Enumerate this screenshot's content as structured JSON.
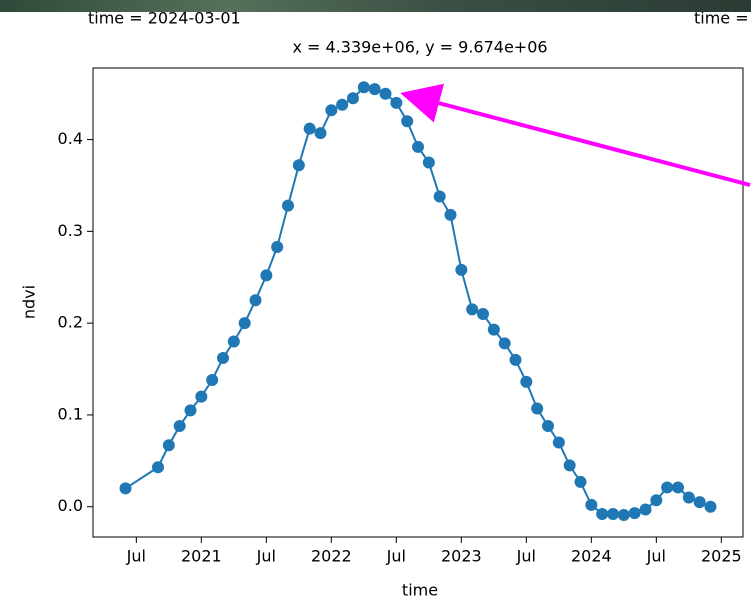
{
  "header": {
    "left_caption": "time = 2024-03-01",
    "right_caption": "time ="
  },
  "chart_data": {
    "type": "line",
    "title": "x = 4.339e+06, y = 9.674e+06",
    "x_label": "time",
    "y_label": "ndvi",
    "color": "#1f77b4",
    "markers": true,
    "x": [
      "2020-06",
      "2020-09",
      "2020-10",
      "2020-11",
      "2020-12",
      "2021-01",
      "2021-02",
      "2021-03",
      "2021-04",
      "2021-05",
      "2021-06",
      "2021-07",
      "2021-08",
      "2021-09",
      "2021-10",
      "2021-11",
      "2021-12",
      "2022-01",
      "2022-02",
      "2022-03",
      "2022-04",
      "2022-05",
      "2022-06",
      "2022-07",
      "2022-08",
      "2022-09",
      "2022-10",
      "2022-11",
      "2022-12",
      "2023-01",
      "2023-02",
      "2023-03",
      "2023-04",
      "2023-05",
      "2023-06",
      "2023-07",
      "2023-08",
      "2023-09",
      "2023-10",
      "2023-11",
      "2023-12",
      "2024-01",
      "2024-02",
      "2024-03",
      "2024-04",
      "2024-05",
      "2024-06",
      "2024-07",
      "2024-08",
      "2024-09",
      "2024-10",
      "2024-11",
      "2024-12"
    ],
    "values": [
      0.02,
      0.043,
      0.067,
      0.088,
      0.105,
      0.12,
      0.138,
      0.162,
      0.18,
      0.2,
      0.225,
      0.252,
      0.283,
      0.328,
      0.372,
      0.412,
      0.407,
      0.432,
      0.438,
      0.445,
      0.457,
      0.455,
      0.45,
      0.44,
      0.42,
      0.392,
      0.375,
      0.338,
      0.318,
      0.258,
      0.215,
      0.21,
      0.193,
      0.178,
      0.16,
      0.136,
      0.107,
      0.088,
      0.07,
      0.045,
      0.027,
      0.002,
      -0.008,
      -0.008,
      -0.009,
      -0.007,
      -0.003,
      0.007,
      0.021,
      0.021,
      0.01,
      0.005,
      0.0
    ],
    "xlim": [
      "2020-03",
      "2025-03"
    ],
    "xticks": [
      {
        "value": "2020-07",
        "label": "Jul"
      },
      {
        "value": "2021-01",
        "label": "2021"
      },
      {
        "value": "2021-07",
        "label": "Jul"
      },
      {
        "value": "2022-01",
        "label": "2022"
      },
      {
        "value": "2022-07",
        "label": "Jul"
      },
      {
        "value": "2023-01",
        "label": "2023"
      },
      {
        "value": "2023-07",
        "label": "Jul"
      },
      {
        "value": "2024-01",
        "label": "2024"
      },
      {
        "value": "2024-07",
        "label": "Jul"
      },
      {
        "value": "2025-01",
        "label": "2025"
      }
    ],
    "ylim": [
      -0.033,
      0.478
    ],
    "yticks": [
      {
        "value": 0,
        "label": "0.0"
      },
      0.1,
      0.2,
      0.3,
      0.4
    ]
  }
}
